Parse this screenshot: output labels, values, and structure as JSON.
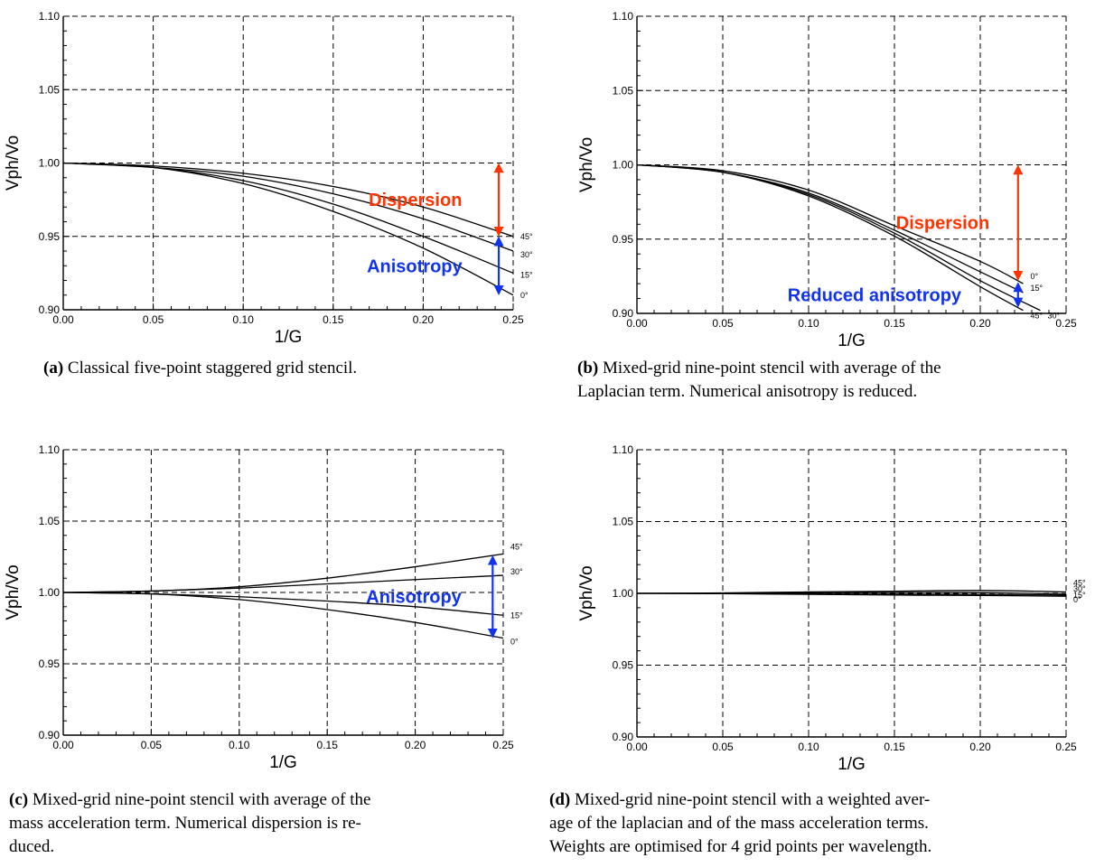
{
  "chart_data": [
    {
      "id": "a",
      "type": "line",
      "title": "",
      "xlabel": "1/G",
      "ylabel": "Vph/Vo",
      "xlim": [
        0,
        0.25
      ],
      "ylim": [
        0.9,
        1.1
      ],
      "xticks": [
        "0.00",
        "0.05",
        "0.10",
        "0.15",
        "0.20",
        "0.25"
      ],
      "yticks": [
        "0.90",
        "0.95",
        "1.00",
        "1.05",
        "1.10"
      ],
      "grid": true,
      "series": [
        {
          "name": "45°",
          "x": [
            0,
            0.05,
            0.1,
            0.15,
            0.2,
            0.25
          ],
          "y": [
            1.0,
            0.998,
            0.993,
            0.984,
            0.97,
            0.95
          ]
        },
        {
          "name": "30°",
          "x": [
            0,
            0.05,
            0.1,
            0.15,
            0.2,
            0.25
          ],
          "y": [
            1.0,
            0.997,
            0.991,
            0.979,
            0.962,
            0.94
          ]
        },
        {
          "name": "15°",
          "x": [
            0,
            0.05,
            0.1,
            0.15,
            0.2,
            0.25
          ],
          "y": [
            1.0,
            0.997,
            0.988,
            0.972,
            0.95,
            0.925
          ]
        },
        {
          "name": "0°",
          "x": [
            0,
            0.05,
            0.1,
            0.15,
            0.2,
            0.25
          ],
          "y": [
            1.0,
            0.997,
            0.986,
            0.967,
            0.942,
            0.91
          ]
        }
      ],
      "arrows": [
        {
          "label": "Dispersion",
          "color": "#ff3300",
          "x": 0.242,
          "y1": 1.0,
          "y2": 0.95
        },
        {
          "label": "Anisotropy",
          "color": "#1133ee",
          "x": 0.242,
          "y1": 0.95,
          "y2": 0.91
        }
      ],
      "caption": {
        "tag": "(a)",
        "lines": [
          "Classical five-point staggered grid stencil."
        ]
      }
    },
    {
      "id": "b",
      "type": "line",
      "title": "",
      "xlabel": "1/G",
      "ylabel": "Vph/Vo",
      "xlim": [
        0,
        0.25
      ],
      "ylim": [
        0.9,
        1.1
      ],
      "xticks": [
        "0.00",
        "0.05",
        "0.10",
        "0.15",
        "0.20",
        "0.25"
      ],
      "yticks": [
        "0.90",
        "0.95",
        "1.00",
        "1.05",
        "1.10"
      ],
      "grid": true,
      "series": [
        {
          "name": "0°",
          "x": [
            0,
            0.05,
            0.1,
            0.15,
            0.2,
            0.225
          ],
          "y": [
            1.0,
            0.996,
            0.983,
            0.959,
            0.935,
            0.92
          ]
        },
        {
          "name": "15°",
          "x": [
            0,
            0.05,
            0.1,
            0.15,
            0.2,
            0.225
          ],
          "y": [
            1.0,
            0.995,
            0.981,
            0.956,
            0.928,
            0.914
          ]
        },
        {
          "name": "30°",
          "x": [
            0,
            0.05,
            0.1,
            0.15,
            0.2,
            0.235
          ],
          "y": [
            1.0,
            0.995,
            0.98,
            0.954,
            0.922,
            0.902
          ]
        },
        {
          "name": "45°",
          "x": [
            0,
            0.05,
            0.1,
            0.15,
            0.2,
            0.225
          ],
          "y": [
            1.0,
            0.995,
            0.979,
            0.952,
            0.918,
            0.902
          ]
        }
      ],
      "arrows": [
        {
          "label": "Dispersion",
          "color": "#ff3300",
          "x": 0.222,
          "y1": 1.0,
          "y2": 0.922
        },
        {
          "label": "Reduced anisotropy",
          "color": "#1133ee",
          "x": 0.222,
          "y1": 0.921,
          "y2": 0.904
        }
      ],
      "caption": {
        "tag": "(b)",
        "lines": [
          "Mixed-grid nine-point stencil with average of the",
          "Laplacian term. Numerical anisotropy is reduced."
        ]
      }
    },
    {
      "id": "c",
      "type": "line",
      "title": "",
      "xlabel": "1/G",
      "ylabel": "Vph/Vo",
      "xlim": [
        0,
        0.25
      ],
      "ylim": [
        0.9,
        1.1
      ],
      "xticks": [
        "0.00",
        "0.05",
        "0.10",
        "0.15",
        "0.20",
        "0.25"
      ],
      "yticks": [
        "0.90",
        "0.95",
        "1.00",
        "1.05",
        "1.10"
      ],
      "grid": true,
      "series": [
        {
          "name": "45°",
          "x": [
            0,
            0.05,
            0.1,
            0.15,
            0.2,
            0.25
          ],
          "y": [
            1.0,
            1.001,
            1.004,
            1.01,
            1.018,
            1.027
          ]
        },
        {
          "name": "30°",
          "x": [
            0,
            0.05,
            0.1,
            0.15,
            0.2,
            0.25
          ],
          "y": [
            1.0,
            1.001,
            1.003,
            1.006,
            1.009,
            1.012
          ]
        },
        {
          "name": "15°",
          "x": [
            0,
            0.05,
            0.1,
            0.15,
            0.2,
            0.25
          ],
          "y": [
            1.0,
            0.999,
            0.997,
            0.994,
            0.99,
            0.984
          ]
        },
        {
          "name": "0°",
          "x": [
            0,
            0.05,
            0.1,
            0.15,
            0.2,
            0.25
          ],
          "y": [
            1.0,
            0.999,
            0.995,
            0.988,
            0.979,
            0.968
          ]
        }
      ],
      "arrows": [
        {
          "label": "Anisotropy",
          "color": "#1133ee",
          "x": 0.244,
          "y1": 1.026,
          "y2": 0.968
        }
      ],
      "caption": {
        "tag": "(c)",
        "lines": [
          "Mixed-grid nine-point stencil with average of the",
          "mass acceleration term. Numerical dispersion is re-",
          "duced."
        ]
      }
    },
    {
      "id": "d",
      "type": "line",
      "title": "",
      "xlabel": "1/G",
      "ylabel": "Vph/Vo",
      "xlim": [
        0,
        0.25
      ],
      "ylim": [
        0.9,
        1.1
      ],
      "xticks": [
        "0.00",
        "0.05",
        "0.10",
        "0.15",
        "0.20",
        "0.25"
      ],
      "yticks": [
        "0.90",
        "0.95",
        "1.00",
        "1.05",
        "1.10"
      ],
      "grid": true,
      "series": [
        {
          "name": "45°",
          "x": [
            0,
            0.05,
            0.1,
            0.15,
            0.2,
            0.25
          ],
          "y": [
            1.0,
            1.0003,
            1.001,
            1.0015,
            1.002,
            1.001
          ]
        },
        {
          "name": "30°",
          "x": [
            0,
            0.05,
            0.1,
            0.15,
            0.2,
            0.25
          ],
          "y": [
            1.0,
            1.0,
            1.0004,
            1.0006,
            1.0005,
            0.9995
          ]
        },
        {
          "name": "15°",
          "x": [
            0,
            0.05,
            0.1,
            0.15,
            0.2,
            0.25
          ],
          "y": [
            1.0,
            0.9999,
            0.9996,
            0.9994,
            0.9992,
            0.9988
          ]
        },
        {
          "name": "0°",
          "x": [
            0,
            0.05,
            0.1,
            0.15,
            0.2,
            0.25
          ],
          "y": [
            1.0,
            0.9998,
            0.9993,
            0.9988,
            0.9985,
            0.998
          ]
        }
      ],
      "arrows": [],
      "caption": {
        "tag": "(d)",
        "lines": [
          "Mixed-grid nine-point stencil with a weighted aver-",
          "age of the laplacian and of the mass acceleration terms.",
          "Weights are optimised for 4 grid points per wavelength."
        ]
      }
    }
  ]
}
